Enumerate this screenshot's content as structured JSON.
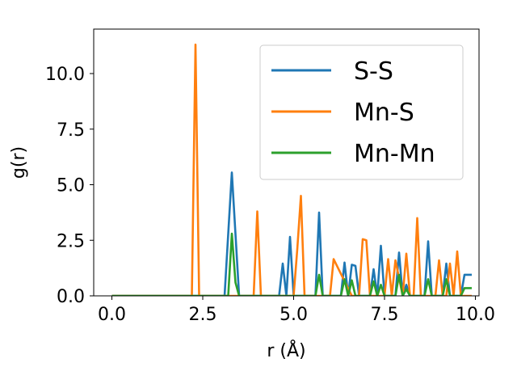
{
  "chart_data": {
    "type": "line",
    "xlabel": "r (Å)",
    "ylabel": "g(r)",
    "xlim": [
      -0.5,
      10.1
    ],
    "ylim": [
      0,
      12
    ],
    "xticks": [
      0.0,
      2.5,
      5.0,
      7.5,
      10.0
    ],
    "xtick_labels": [
      "0.0",
      "2.5",
      "5.0",
      "7.5",
      "10.0"
    ],
    "yticks": [
      0.0,
      2.5,
      5.0,
      7.5,
      10.0
    ],
    "ytick_labels": [
      "0.0",
      "2.5",
      "5.0",
      "7.5",
      "10.0"
    ],
    "grid": false,
    "legend_position": "top-right",
    "series": [
      {
        "name": "S-S",
        "color": "#1f77b4",
        "x": [
          0.0,
          3.1,
          3.3,
          3.5,
          4.6,
          4.7,
          4.8,
          4.9,
          5.0,
          5.1,
          5.6,
          5.7,
          5.8,
          6.3,
          6.4,
          6.5,
          6.6,
          6.7,
          6.8,
          7.1,
          7.2,
          7.3,
          7.4,
          7.5,
          7.8,
          7.9,
          8.0,
          8.1,
          8.2,
          8.6,
          8.7,
          8.8,
          9.1,
          9.2,
          9.3,
          9.6,
          9.7,
          9.8,
          9.9
        ],
        "y": [
          0.0,
          0.0,
          5.55,
          0.0,
          0.0,
          1.45,
          0.0,
          2.65,
          0.0,
          0.0,
          0.0,
          3.75,
          0.0,
          0.0,
          1.5,
          0.0,
          1.4,
          1.35,
          0.0,
          0.0,
          1.2,
          0.0,
          2.25,
          0.0,
          0.0,
          1.95,
          0.0,
          0.5,
          0.0,
          0.0,
          2.45,
          0.0,
          0.0,
          1.45,
          0.0,
          0.0,
          0.95,
          0.95,
          0.95
        ]
      },
      {
        "name": "Mn-S",
        "color": "#ff7f0e",
        "x": [
          0.0,
          2.2,
          2.3,
          2.4,
          3.8,
          3.9,
          4.0,
          4.1,
          5.0,
          5.1,
          5.2,
          5.3,
          5.9,
          6.0,
          6.1,
          6.6,
          6.7,
          6.8,
          6.9,
          7.0,
          7.1,
          7.5,
          7.6,
          7.7,
          7.8,
          8.0,
          8.1,
          8.2,
          8.3,
          8.4,
          8.5,
          8.9,
          9.0,
          9.1,
          9.2,
          9.3,
          9.4,
          9.5,
          9.6,
          9.7,
          9.8,
          9.9
        ],
        "y": [
          0.0,
          0.0,
          11.3,
          0.0,
          0.0,
          0.0,
          3.8,
          0.0,
          0.0,
          2.1,
          4.5,
          0.0,
          0.0,
          0.0,
          1.65,
          0.0,
          0.0,
          0.0,
          2.55,
          2.5,
          0.0,
          0.0,
          1.65,
          0.0,
          1.6,
          0.0,
          1.9,
          0.0,
          0.0,
          3.5,
          0.0,
          0.0,
          1.6,
          0.0,
          0.0,
          1.45,
          0.0,
          2.0,
          0.0,
          0.0,
          0.0,
          0.0
        ]
      },
      {
        "name": "Mn-Mn",
        "color": "#2ca02c",
        "x": [
          0.0,
          3.2,
          3.3,
          3.4,
          3.5,
          5.6,
          5.7,
          5.8,
          6.3,
          6.4,
          6.5,
          6.6,
          6.7,
          7.1,
          7.2,
          7.3,
          7.4,
          7.5,
          7.8,
          7.9,
          8.0,
          8.1,
          8.2,
          8.6,
          8.7,
          8.8,
          9.1,
          9.2,
          9.3,
          9.6,
          9.7,
          9.8,
          9.9
        ],
        "y": [
          0.0,
          0.0,
          2.8,
          0.6,
          0.0,
          0.0,
          0.95,
          0.0,
          0.0,
          0.75,
          0.0,
          0.7,
          0.0,
          0.0,
          0.65,
          0.0,
          0.5,
          0.0,
          0.0,
          0.95,
          0.0,
          0.3,
          0.0,
          0.0,
          0.75,
          0.0,
          0.0,
          0.75,
          0.0,
          0.0,
          0.35,
          0.35,
          0.35
        ]
      }
    ]
  }
}
